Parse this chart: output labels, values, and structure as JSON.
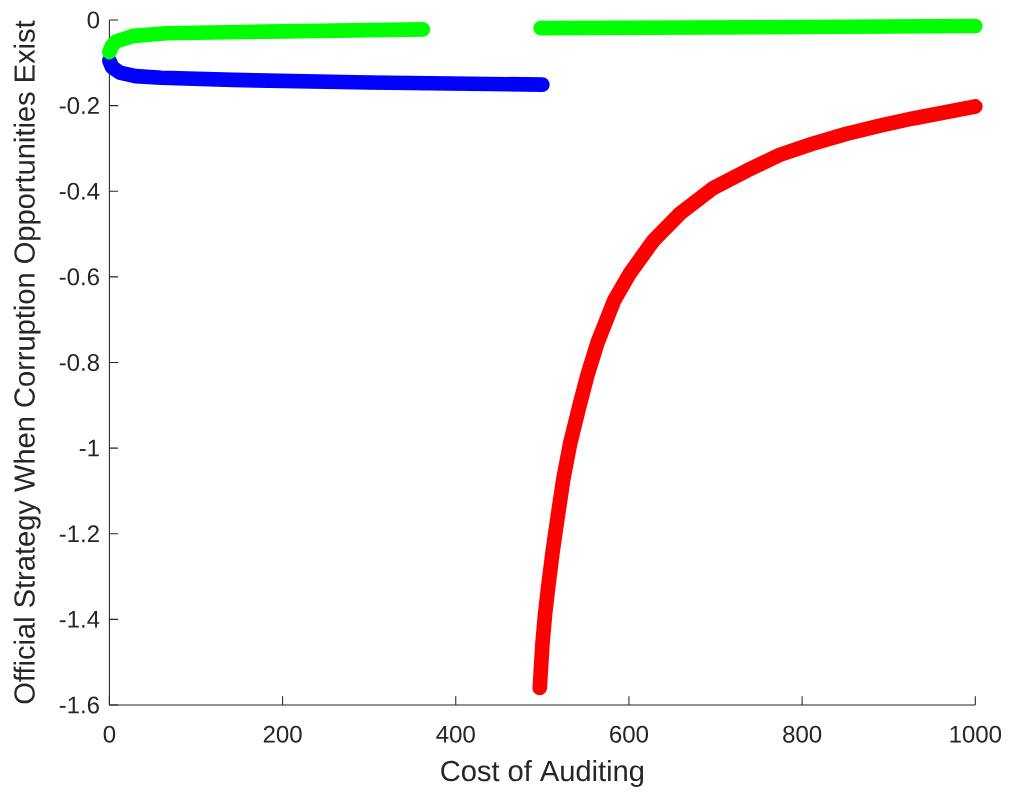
{
  "chart_data": {
    "type": "line",
    "xlabel": "Cost of Auditing",
    "ylabel": "Official Strategy When Corruption Opportunities Exist",
    "xlim": [
      0,
      1000
    ],
    "ylim": [
      -1.6,
      0
    ],
    "xticks": [
      0,
      200,
      400,
      600,
      800,
      1000
    ],
    "yticks": [
      -1.6,
      -1.4,
      -1.2,
      -1,
      -0.8,
      -0.6,
      -0.4,
      -0.2,
      0
    ],
    "series": [
      {
        "color": "#0000ff",
        "x": [
          0,
          3,
          12,
          30,
          60,
          143,
          300,
          500
        ],
        "values": [
          -0.095,
          -0.11,
          -0.123,
          -0.131,
          -0.135,
          -0.14,
          -0.146,
          -0.151
        ]
      },
      {
        "color": "#00ff00",
        "x": [
          0,
          3,
          8,
          28,
          66,
          182,
          362,
          430,
          498,
          750,
          1000
        ],
        "values": [
          -0.075,
          -0.06,
          -0.05,
          -0.037,
          -0.031,
          -0.027,
          -0.022,
          null,
          -0.019,
          -0.017,
          -0.014
        ]
      },
      {
        "color": "#ff0000",
        "x": [
          497,
          500,
          503,
          507,
          512,
          517,
          524,
          532,
          543,
          552,
          564,
          583,
          601,
          628,
          659,
          697,
          736,
          774,
          812,
          851,
          890,
          928,
          964,
          1000
        ],
        "values": [
          -1.56,
          -1.46,
          -1.39,
          -1.32,
          -1.24,
          -1.17,
          -1.075,
          -0.99,
          -0.9,
          -0.83,
          -0.752,
          -0.655,
          -0.592,
          -0.516,
          -0.452,
          -0.393,
          -0.352,
          -0.315,
          -0.289,
          -0.266,
          -0.247,
          -0.23,
          -0.216,
          -0.202
        ]
      }
    ]
  }
}
